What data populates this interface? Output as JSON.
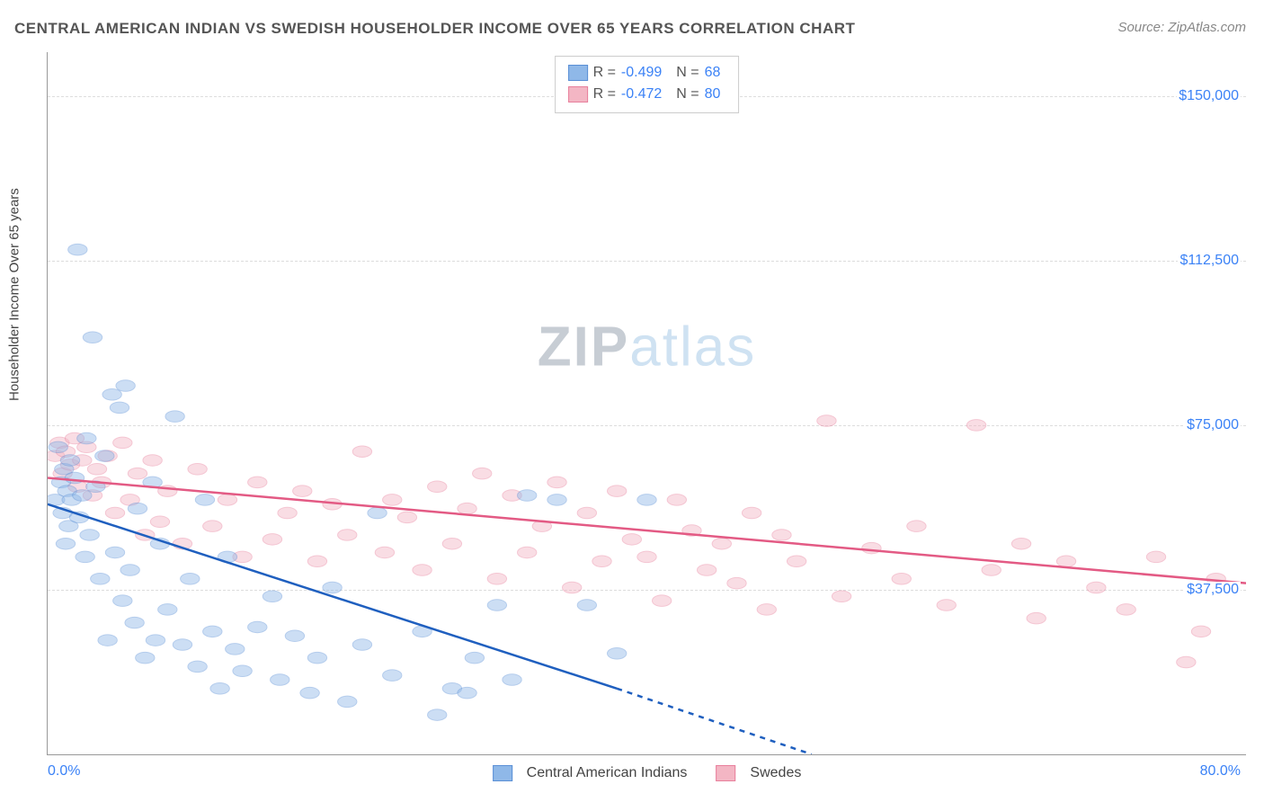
{
  "title": "CENTRAL AMERICAN INDIAN VS SWEDISH HOUSEHOLDER INCOME OVER 65 YEARS CORRELATION CHART",
  "source": "Source: ZipAtlas.com",
  "ylabel": "Householder Income Over 65 years",
  "watermark_zip": "ZIP",
  "watermark_atlas": "atlas",
  "chart": {
    "type": "scatter",
    "xlim": [
      0,
      80
    ],
    "ylim": [
      0,
      160000
    ],
    "x_ticks": {
      "left": "0.0%",
      "right": "80.0%"
    },
    "y_ticks": [
      {
        "v": 37500,
        "label": "$37,500"
      },
      {
        "v": 75000,
        "label": "$75,000"
      },
      {
        "v": 112500,
        "label": "$112,500"
      },
      {
        "v": 150000,
        "label": "$150,000"
      }
    ],
    "background_color": "#ffffff",
    "grid_color": "#dddddd",
    "axis_color": "#999999",
    "tick_color": "#3b82f6",
    "marker_radius": 8,
    "marker_opacity": 0.45,
    "line_width": 2.5,
    "series": [
      {
        "id": "blue",
        "name": "Central American Indians",
        "color_fill": "#8fb8e8",
        "color_stroke": "#5a8fd6",
        "line_color": "#1f5fbf",
        "R": "-0.499",
        "N": "68",
        "trend_solid": {
          "x1": 0,
          "y1": 57000,
          "x2": 38,
          "y2": 15000
        },
        "trend_dashed": {
          "x1": 38,
          "y1": 15000,
          "x2": 51,
          "y2": 0
        },
        "points": [
          [
            0.5,
            58000
          ],
          [
            0.7,
            70000
          ],
          [
            0.9,
            62000
          ],
          [
            1.0,
            55000
          ],
          [
            1.1,
            65000
          ],
          [
            1.2,
            48000
          ],
          [
            1.3,
            60000
          ],
          [
            1.4,
            52000
          ],
          [
            1.5,
            67000
          ],
          [
            1.6,
            58000
          ],
          [
            1.8,
            63000
          ],
          [
            2.0,
            115000
          ],
          [
            2.1,
            54000
          ],
          [
            2.3,
            59000
          ],
          [
            2.5,
            45000
          ],
          [
            2.6,
            72000
          ],
          [
            2.8,
            50000
          ],
          [
            3.0,
            95000
          ],
          [
            3.2,
            61000
          ],
          [
            3.5,
            40000
          ],
          [
            3.8,
            68000
          ],
          [
            4.0,
            26000
          ],
          [
            4.3,
            82000
          ],
          [
            4.5,
            46000
          ],
          [
            4.8,
            79000
          ],
          [
            5.0,
            35000
          ],
          [
            5.2,
            84000
          ],
          [
            5.5,
            42000
          ],
          [
            5.8,
            30000
          ],
          [
            6.0,
            56000
          ],
          [
            6.5,
            22000
          ],
          [
            7.0,
            62000
          ],
          [
            7.2,
            26000
          ],
          [
            7.5,
            48000
          ],
          [
            8.0,
            33000
          ],
          [
            8.5,
            77000
          ],
          [
            9.0,
            25000
          ],
          [
            9.5,
            40000
          ],
          [
            10.0,
            20000
          ],
          [
            10.5,
            58000
          ],
          [
            11.0,
            28000
          ],
          [
            11.5,
            15000
          ],
          [
            12.0,
            45000
          ],
          [
            12.5,
            24000
          ],
          [
            13.0,
            19000
          ],
          [
            14.0,
            29000
          ],
          [
            15.0,
            36000
          ],
          [
            15.5,
            17000
          ],
          [
            16.5,
            27000
          ],
          [
            17.5,
            14000
          ],
          [
            18.0,
            22000
          ],
          [
            19.0,
            38000
          ],
          [
            20.0,
            12000
          ],
          [
            21.0,
            25000
          ],
          [
            22.0,
            55000
          ],
          [
            23.0,
            18000
          ],
          [
            25.0,
            28000
          ],
          [
            26.0,
            9000
          ],
          [
            27.0,
            15000
          ],
          [
            28.5,
            22000
          ],
          [
            28.0,
            14000
          ],
          [
            30.0,
            34000
          ],
          [
            31.0,
            17000
          ],
          [
            32.0,
            59000
          ],
          [
            34.0,
            58000
          ],
          [
            36.0,
            34000
          ],
          [
            38.0,
            23000
          ],
          [
            40.0,
            58000
          ]
        ]
      },
      {
        "id": "pink",
        "name": "Swedes",
        "color_fill": "#f3b6c4",
        "color_stroke": "#e87f9c",
        "line_color": "#e35a84",
        "R": "-0.472",
        "N": "80",
        "trend_solid": {
          "x1": 0,
          "y1": 63000,
          "x2": 80,
          "y2": 39000
        },
        "points": [
          [
            0.5,
            68000
          ],
          [
            0.8,
            71000
          ],
          [
            1.0,
            64000
          ],
          [
            1.2,
            69000
          ],
          [
            1.5,
            66000
          ],
          [
            1.8,
            72000
          ],
          [
            2.0,
            61000
          ],
          [
            2.3,
            67000
          ],
          [
            2.6,
            70000
          ],
          [
            3.0,
            59000
          ],
          [
            3.3,
            65000
          ],
          [
            3.6,
            62000
          ],
          [
            4.0,
            68000
          ],
          [
            4.5,
            55000
          ],
          [
            5.0,
            71000
          ],
          [
            5.5,
            58000
          ],
          [
            6.0,
            64000
          ],
          [
            6.5,
            50000
          ],
          [
            7.0,
            67000
          ],
          [
            7.5,
            53000
          ],
          [
            8.0,
            60000
          ],
          [
            9.0,
            48000
          ],
          [
            10.0,
            65000
          ],
          [
            11.0,
            52000
          ],
          [
            12.0,
            58000
          ],
          [
            13.0,
            45000
          ],
          [
            14.0,
            62000
          ],
          [
            15.0,
            49000
          ],
          [
            16.0,
            55000
          ],
          [
            17.0,
            60000
          ],
          [
            18.0,
            44000
          ],
          [
            19.0,
            57000
          ],
          [
            20.0,
            50000
          ],
          [
            21.0,
            69000
          ],
          [
            22.5,
            46000
          ],
          [
            23.0,
            58000
          ],
          [
            24.0,
            54000
          ],
          [
            25.0,
            42000
          ],
          [
            26.0,
            61000
          ],
          [
            27.0,
            48000
          ],
          [
            28.0,
            56000
          ],
          [
            29.0,
            64000
          ],
          [
            30.0,
            40000
          ],
          [
            31.0,
            59000
          ],
          [
            32.0,
            46000
          ],
          [
            33.0,
            52000
          ],
          [
            34.0,
            62000
          ],
          [
            35.0,
            38000
          ],
          [
            36.0,
            55000
          ],
          [
            37.0,
            44000
          ],
          [
            38.0,
            60000
          ],
          [
            39.0,
            49000
          ],
          [
            40.0,
            45000
          ],
          [
            41.0,
            35000
          ],
          [
            42.0,
            58000
          ],
          [
            43.0,
            51000
          ],
          [
            44.0,
            42000
          ],
          [
            45.0,
            48000
          ],
          [
            46.0,
            39000
          ],
          [
            47.0,
            55000
          ],
          [
            48.0,
            33000
          ],
          [
            49.0,
            50000
          ],
          [
            50.0,
            44000
          ],
          [
            52.0,
            76000
          ],
          [
            53.0,
            36000
          ],
          [
            55.0,
            47000
          ],
          [
            57.0,
            40000
          ],
          [
            58.0,
            52000
          ],
          [
            60.0,
            34000
          ],
          [
            62.0,
            75000
          ],
          [
            63.0,
            42000
          ],
          [
            65.0,
            48000
          ],
          [
            66.0,
            31000
          ],
          [
            68.0,
            44000
          ],
          [
            70.0,
            38000
          ],
          [
            72.0,
            33000
          ],
          [
            74.0,
            45000
          ],
          [
            76.0,
            21000
          ],
          [
            77.0,
            28000
          ],
          [
            78.0,
            40000
          ]
        ]
      }
    ]
  }
}
